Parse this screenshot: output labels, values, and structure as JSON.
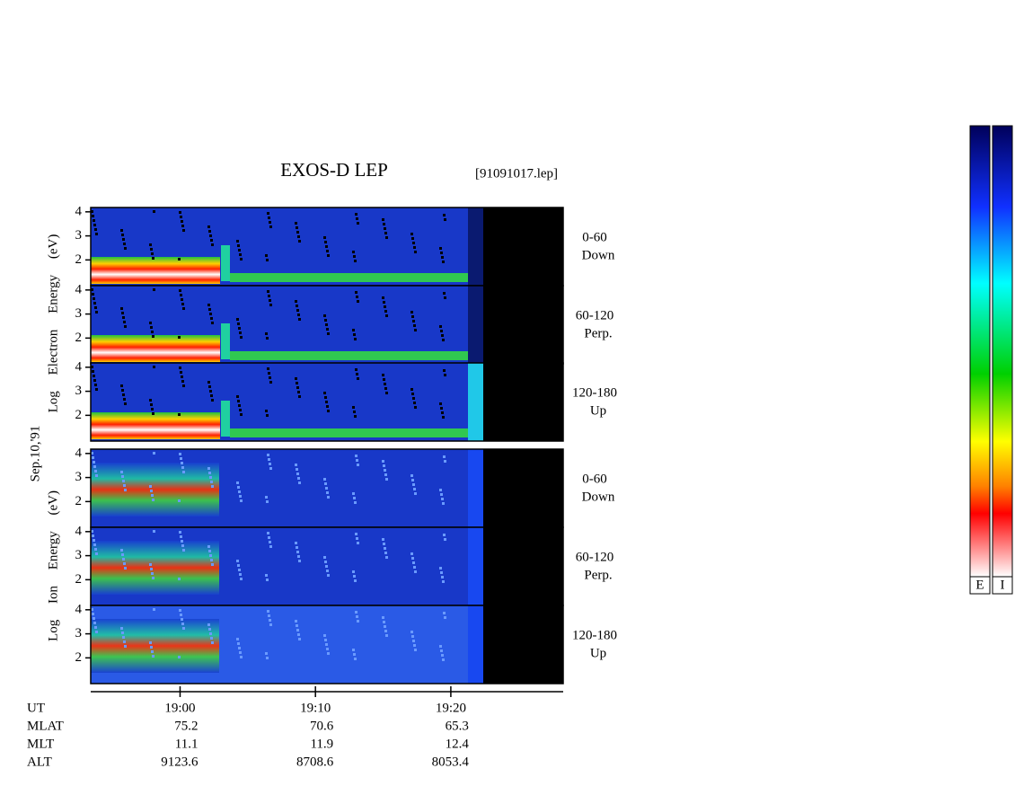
{
  "title": "EXOS-D LEP",
  "file": "[91091017.lep]",
  "date": "Sep.10,'91",
  "electron": {
    "axis_label": "Log Electron Energy (eV)",
    "panels": [
      {
        "label": "0-60",
        "direction": "Down"
      },
      {
        "label": "60-120",
        "direction": "Perp."
      },
      {
        "label": "120-180",
        "direction": "Up"
      }
    ]
  },
  "ion": {
    "axis_label": "Log Ion Energy (eV)",
    "panels": [
      {
        "label": "0-60",
        "direction": "Down"
      },
      {
        "label": "60-120",
        "direction": "Perp."
      },
      {
        "label": "120-180",
        "direction": "Up"
      }
    ]
  },
  "energy_axis": {
    "ylim": [
      0.93,
      4.18
    ],
    "yticks": [
      2,
      3,
      4
    ]
  },
  "time_axis": {
    "xlim": [
      1133.4,
      1168.3
    ],
    "xticks": [
      {
        "value": 1140,
        "label": "19:00"
      },
      {
        "value": 1150,
        "label": "19:10"
      },
      {
        "value": 1160,
        "label": "19:20"
      }
    ]
  },
  "orbit": {
    "time_label": "UT",
    "rows": [
      {
        "name": "MLAT",
        "values": [
          75.2,
          70.6,
          65.3
        ]
      },
      {
        "name": "MLT",
        "values": [
          11.1,
          11.9,
          12.4
        ]
      },
      {
        "name": "ALT",
        "values": [
          9123.6,
          8708.6,
          8053.4
        ]
      }
    ]
  },
  "colorbars": [
    "E",
    "I"
  ]
}
